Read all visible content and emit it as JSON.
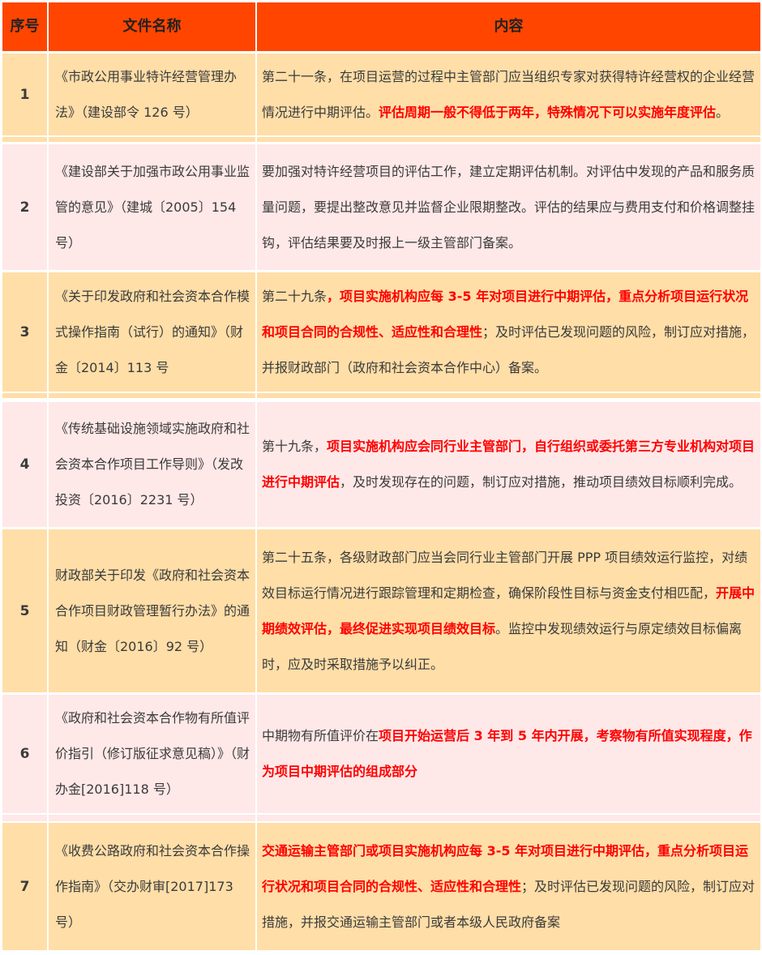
{
  "header": {
    "col_no": "序号",
    "col_name": "文件名称",
    "col_content": "内容"
  },
  "colors": {
    "header": "#FF4500",
    "row_odd": "#FFDEA8",
    "row_even": "#FFE8E8",
    "highlight": "#FF0000"
  },
  "rows": [
    {
      "no": "1",
      "name": "《市政公用事业特许经营管理办法》（建设部令 126 号）",
      "content": [
        {
          "text": "第二十一条，在项目运营的过程中主管部门应当组织专家对获得特许经营权的企业经营情况进行中期评估。",
          "red": false
        },
        {
          "text": "评估周期一般不得低于两年，特殊情况下可以实施年度评估",
          "red": true
        },
        {
          "text": "。",
          "red": false
        }
      ]
    },
    {
      "no": "2",
      "name": "《建设部关于加强市政公用事业监管的意见》（建城〔2005〕154 号）",
      "content": [
        {
          "text": "要加强对特许经营项目的评估工作，建立定期评估机制。对评估中发现的产品和服务质量问题，要提出整改意见并监督企业限期整改。评估的结果应与费用支付和价格调整挂钩，评估结果要及时报上一级主管部门备案。",
          "red": false
        }
      ]
    },
    {
      "no": "3",
      "name": "《关于印发政府和社会资本合作模式操作指南（试行）的通知》（财金〔2014〕113 号",
      "content": [
        {
          "text": "第二十九条",
          "red": false
        },
        {
          "text": "，项目实施机构应每 3-5 年对项目进行中期评估，重点分析项目运行状况和项目合同的合规性、适应性和合理性",
          "red": true
        },
        {
          "text": "；及时评估已发现问题的风险，制订应对措施，并报财政部门（政府和社会资本合作中心）备案。",
          "red": false
        }
      ]
    },
    {
      "no": "4",
      "name": "《传统基础设施领域实施政府和社会资本合作项目工作导则》（发改投资〔2016〕2231 号）",
      "content": [
        {
          "text": "第十九条，",
          "red": false
        },
        {
          "text": "项目实施机构应会同行业主管部门，自行组织或委托第三方专业机构对项目进行中期评估",
          "red": true
        },
        {
          "text": "，及时发现存在的问题，制订应对措施，推动项目绩效目标顺利完成。",
          "red": false
        }
      ]
    },
    {
      "no": "5",
      "name": "财政部关于印发《政府和社会资本合作项目财政管理暂行办法》的通知（财金〔2016〕92 号）",
      "content": [
        {
          "text": "第二十五条，各级财政部门应当会同行业主管部门开展 PPP 项目绩效运行监控，对绩效目标运行情况进行跟踪管理和定期检查，确保阶段性目标与资金支付相匹配，",
          "red": false
        },
        {
          "text": "开展中期绩效评估，最终促进实现项目绩效目标",
          "red": true
        },
        {
          "text": "。监控中发现绩效运行与原定绩效目标偏离时，应及时采取措施予以纠正。",
          "red": false
        }
      ]
    },
    {
      "no": "6",
      "name": "《政府和社会资本合作物有所值评价指引（修订版征求意见稿）》（财办金[2016]118 号）",
      "content": [
        {
          "text": "中期物有所值评价在",
          "red": false
        },
        {
          "text": "项目开始运营后 3 年到 5 年内开展，考察物有所值实现程度，作为项目中期评估的组成部分",
          "red": true
        }
      ]
    },
    {
      "no": "7",
      "name": "《收费公路政府和社会资本合作操作指南》（交办财审[2017]173 号）",
      "content": [
        {
          "text": "交通运输主管部门或项目实施机构应每 3-5 年对项目进行中期评估，重点分析项目运行状况和项目合同的合规性、适应性和合理性",
          "red": true
        },
        {
          "text": "；及时评估已发现问题的风险，制订应对措施，并报交通运输主管部门或者本级人民政府备案",
          "red": false
        }
      ]
    }
  ]
}
